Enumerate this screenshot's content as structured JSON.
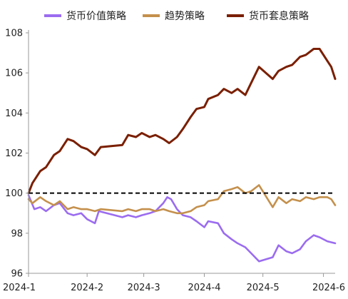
{
  "chart_data": {
    "type": "line",
    "title": "",
    "xlabel": "",
    "ylabel": "",
    "ylim": [
      96,
      108
    ],
    "yticks": [
      96,
      98,
      100,
      102,
      104,
      106,
      108
    ],
    "xlim": [
      "2024-01-02",
      "2024-06-07"
    ],
    "xticks": [
      "2024-01-01",
      "2024-02-01",
      "2024-03-01",
      "2024-04-01",
      "2024-05-01",
      "2024-06-01"
    ],
    "xtick_labels": [
      "2024-1",
      "2024-2",
      "2024-3",
      "2024-4",
      "2024-5",
      "2024-6"
    ],
    "grid": false,
    "legend_position": "top",
    "reference_line": {
      "y": 100,
      "style": "dashed",
      "color": "#000000"
    },
    "series": [
      {
        "name": "货币价值策略",
        "color": "#9B6CF0",
        "points": [
          [
            "2024-01-02",
            99.9
          ],
          [
            "2024-01-05",
            99.2
          ],
          [
            "2024-01-08",
            99.3
          ],
          [
            "2024-01-11",
            99.1
          ],
          [
            "2024-01-15",
            99.4
          ],
          [
            "2024-01-18",
            99.5
          ],
          [
            "2024-01-22",
            99.0
          ],
          [
            "2024-01-25",
            98.9
          ],
          [
            "2024-01-29",
            99.0
          ],
          [
            "2024-02-01",
            98.7
          ],
          [
            "2024-02-05",
            98.5
          ],
          [
            "2024-02-07",
            99.1
          ],
          [
            "2024-02-19",
            98.8
          ],
          [
            "2024-02-22",
            98.9
          ],
          [
            "2024-02-26",
            98.8
          ],
          [
            "2024-02-29",
            98.9
          ],
          [
            "2024-03-04",
            99.0
          ],
          [
            "2024-03-07",
            99.1
          ],
          [
            "2024-03-11",
            99.5
          ],
          [
            "2024-03-13",
            99.8
          ],
          [
            "2024-03-15",
            99.7
          ],
          [
            "2024-03-18",
            99.2
          ],
          [
            "2024-03-21",
            98.9
          ],
          [
            "2024-03-25",
            98.8
          ],
          [
            "2024-03-28",
            98.6
          ],
          [
            "2024-04-01",
            98.3
          ],
          [
            "2024-04-03",
            98.6
          ],
          [
            "2024-04-08",
            98.5
          ],
          [
            "2024-04-11",
            98.0
          ],
          [
            "2024-04-15",
            97.7
          ],
          [
            "2024-04-18",
            97.5
          ],
          [
            "2024-04-22",
            97.3
          ],
          [
            "2024-04-25",
            97.0
          ],
          [
            "2024-04-29",
            96.6
          ],
          [
            "2024-05-06",
            96.8
          ],
          [
            "2024-05-09",
            97.4
          ],
          [
            "2024-05-13",
            97.1
          ],
          [
            "2024-05-16",
            97.0
          ],
          [
            "2024-05-20",
            97.2
          ],
          [
            "2024-05-23",
            97.6
          ],
          [
            "2024-05-27",
            97.9
          ],
          [
            "2024-05-30",
            97.8
          ],
          [
            "2024-06-03",
            97.6
          ],
          [
            "2024-06-07",
            97.5
          ]
        ]
      },
      {
        "name": "趋势策略",
        "color": "#C4904C",
        "points": [
          [
            "2024-01-02",
            99.7
          ],
          [
            "2024-01-04",
            99.5
          ],
          [
            "2024-01-08",
            99.8
          ],
          [
            "2024-01-11",
            99.6
          ],
          [
            "2024-01-15",
            99.4
          ],
          [
            "2024-01-18",
            99.6
          ],
          [
            "2024-01-22",
            99.2
          ],
          [
            "2024-01-25",
            99.3
          ],
          [
            "2024-01-29",
            99.2
          ],
          [
            "2024-02-01",
            99.2
          ],
          [
            "2024-02-05",
            99.1
          ],
          [
            "2024-02-08",
            99.2
          ],
          [
            "2024-02-19",
            99.1
          ],
          [
            "2024-02-22",
            99.2
          ],
          [
            "2024-02-26",
            99.1
          ],
          [
            "2024-02-29",
            99.2
          ],
          [
            "2024-03-04",
            99.2
          ],
          [
            "2024-03-07",
            99.1
          ],
          [
            "2024-03-11",
            99.2
          ],
          [
            "2024-03-14",
            99.1
          ],
          [
            "2024-03-18",
            99.0
          ],
          [
            "2024-03-21",
            99.0
          ],
          [
            "2024-03-25",
            99.1
          ],
          [
            "2024-03-28",
            99.3
          ],
          [
            "2024-04-01",
            99.4
          ],
          [
            "2024-04-03",
            99.6
          ],
          [
            "2024-04-08",
            99.7
          ],
          [
            "2024-04-11",
            100.1
          ],
          [
            "2024-04-15",
            100.2
          ],
          [
            "2024-04-18",
            100.3
          ],
          [
            "2024-04-22",
            100.0
          ],
          [
            "2024-04-25",
            100.1
          ],
          [
            "2024-04-29",
            100.4
          ],
          [
            "2024-05-06",
            99.3
          ],
          [
            "2024-05-09",
            99.8
          ],
          [
            "2024-05-13",
            99.5
          ],
          [
            "2024-05-16",
            99.7
          ],
          [
            "2024-05-20",
            99.6
          ],
          [
            "2024-05-23",
            99.8
          ],
          [
            "2024-05-27",
            99.7
          ],
          [
            "2024-05-30",
            99.8
          ],
          [
            "2024-06-03",
            99.8
          ],
          [
            "2024-06-05",
            99.7
          ],
          [
            "2024-06-07",
            99.4
          ]
        ]
      },
      {
        "name": "货币套息策略",
        "color": "#7A1F00",
        "points": [
          [
            "2024-01-02",
            100.0
          ],
          [
            "2024-01-04",
            100.5
          ],
          [
            "2024-01-08",
            101.1
          ],
          [
            "2024-01-11",
            101.3
          ],
          [
            "2024-01-15",
            101.9
          ],
          [
            "2024-01-18",
            102.1
          ],
          [
            "2024-01-22",
            102.7
          ],
          [
            "2024-01-25",
            102.6
          ],
          [
            "2024-01-29",
            102.3
          ],
          [
            "2024-02-01",
            102.2
          ],
          [
            "2024-02-05",
            101.9
          ],
          [
            "2024-02-08",
            102.3
          ],
          [
            "2024-02-19",
            102.4
          ],
          [
            "2024-02-22",
            102.9
          ],
          [
            "2024-02-26",
            102.8
          ],
          [
            "2024-02-29",
            103.0
          ],
          [
            "2024-03-04",
            102.8
          ],
          [
            "2024-03-07",
            102.9
          ],
          [
            "2024-03-11",
            102.7
          ],
          [
            "2024-03-14",
            102.5
          ],
          [
            "2024-03-18",
            102.8
          ],
          [
            "2024-03-21",
            103.2
          ],
          [
            "2024-03-25",
            103.8
          ],
          [
            "2024-03-28",
            104.2
          ],
          [
            "2024-04-01",
            104.3
          ],
          [
            "2024-04-03",
            104.7
          ],
          [
            "2024-04-08",
            104.9
          ],
          [
            "2024-04-11",
            105.2
          ],
          [
            "2024-04-15",
            105.0
          ],
          [
            "2024-04-18",
            105.2
          ],
          [
            "2024-04-22",
            104.9
          ],
          [
            "2024-04-25",
            105.5
          ],
          [
            "2024-04-29",
            106.3
          ],
          [
            "2024-05-06",
            105.7
          ],
          [
            "2024-05-09",
            106.1
          ],
          [
            "2024-05-13",
            106.3
          ],
          [
            "2024-05-16",
            106.4
          ],
          [
            "2024-05-20",
            106.8
          ],
          [
            "2024-05-23",
            106.9
          ],
          [
            "2024-05-27",
            107.2
          ],
          [
            "2024-05-30",
            107.2
          ],
          [
            "2024-06-03",
            106.6
          ],
          [
            "2024-06-05",
            106.3
          ],
          [
            "2024-06-07",
            105.7
          ]
        ]
      }
    ]
  }
}
